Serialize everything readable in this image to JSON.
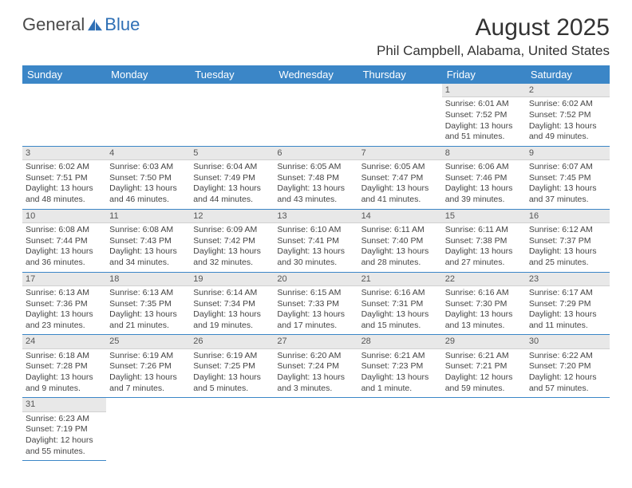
{
  "logo": {
    "text1": "General",
    "text2": "Blue",
    "icon_color": "#2e6fb5"
  },
  "title": "August 2025",
  "location": "Phil Campbell, Alabama, United States",
  "colors": {
    "header_bg": "#3b86c7",
    "header_text": "#ffffff",
    "daybar_bg": "#e8e8e8",
    "row_border": "#3b86c7"
  },
  "dayHeaders": [
    "Sunday",
    "Monday",
    "Tuesday",
    "Wednesday",
    "Thursday",
    "Friday",
    "Saturday"
  ],
  "weeks": [
    [
      null,
      null,
      null,
      null,
      null,
      {
        "n": "1",
        "sr": "Sunrise: 6:01 AM",
        "ss": "Sunset: 7:52 PM",
        "dl1": "Daylight: 13 hours",
        "dl2": "and 51 minutes."
      },
      {
        "n": "2",
        "sr": "Sunrise: 6:02 AM",
        "ss": "Sunset: 7:52 PM",
        "dl1": "Daylight: 13 hours",
        "dl2": "and 49 minutes."
      }
    ],
    [
      {
        "n": "3",
        "sr": "Sunrise: 6:02 AM",
        "ss": "Sunset: 7:51 PM",
        "dl1": "Daylight: 13 hours",
        "dl2": "and 48 minutes."
      },
      {
        "n": "4",
        "sr": "Sunrise: 6:03 AM",
        "ss": "Sunset: 7:50 PM",
        "dl1": "Daylight: 13 hours",
        "dl2": "and 46 minutes."
      },
      {
        "n": "5",
        "sr": "Sunrise: 6:04 AM",
        "ss": "Sunset: 7:49 PM",
        "dl1": "Daylight: 13 hours",
        "dl2": "and 44 minutes."
      },
      {
        "n": "6",
        "sr": "Sunrise: 6:05 AM",
        "ss": "Sunset: 7:48 PM",
        "dl1": "Daylight: 13 hours",
        "dl2": "and 43 minutes."
      },
      {
        "n": "7",
        "sr": "Sunrise: 6:05 AM",
        "ss": "Sunset: 7:47 PM",
        "dl1": "Daylight: 13 hours",
        "dl2": "and 41 minutes."
      },
      {
        "n": "8",
        "sr": "Sunrise: 6:06 AM",
        "ss": "Sunset: 7:46 PM",
        "dl1": "Daylight: 13 hours",
        "dl2": "and 39 minutes."
      },
      {
        "n": "9",
        "sr": "Sunrise: 6:07 AM",
        "ss": "Sunset: 7:45 PM",
        "dl1": "Daylight: 13 hours",
        "dl2": "and 37 minutes."
      }
    ],
    [
      {
        "n": "10",
        "sr": "Sunrise: 6:08 AM",
        "ss": "Sunset: 7:44 PM",
        "dl1": "Daylight: 13 hours",
        "dl2": "and 36 minutes."
      },
      {
        "n": "11",
        "sr": "Sunrise: 6:08 AM",
        "ss": "Sunset: 7:43 PM",
        "dl1": "Daylight: 13 hours",
        "dl2": "and 34 minutes."
      },
      {
        "n": "12",
        "sr": "Sunrise: 6:09 AM",
        "ss": "Sunset: 7:42 PM",
        "dl1": "Daylight: 13 hours",
        "dl2": "and 32 minutes."
      },
      {
        "n": "13",
        "sr": "Sunrise: 6:10 AM",
        "ss": "Sunset: 7:41 PM",
        "dl1": "Daylight: 13 hours",
        "dl2": "and 30 minutes."
      },
      {
        "n": "14",
        "sr": "Sunrise: 6:11 AM",
        "ss": "Sunset: 7:40 PM",
        "dl1": "Daylight: 13 hours",
        "dl2": "and 28 minutes."
      },
      {
        "n": "15",
        "sr": "Sunrise: 6:11 AM",
        "ss": "Sunset: 7:38 PM",
        "dl1": "Daylight: 13 hours",
        "dl2": "and 27 minutes."
      },
      {
        "n": "16",
        "sr": "Sunrise: 6:12 AM",
        "ss": "Sunset: 7:37 PM",
        "dl1": "Daylight: 13 hours",
        "dl2": "and 25 minutes."
      }
    ],
    [
      {
        "n": "17",
        "sr": "Sunrise: 6:13 AM",
        "ss": "Sunset: 7:36 PM",
        "dl1": "Daylight: 13 hours",
        "dl2": "and 23 minutes."
      },
      {
        "n": "18",
        "sr": "Sunrise: 6:13 AM",
        "ss": "Sunset: 7:35 PM",
        "dl1": "Daylight: 13 hours",
        "dl2": "and 21 minutes."
      },
      {
        "n": "19",
        "sr": "Sunrise: 6:14 AM",
        "ss": "Sunset: 7:34 PM",
        "dl1": "Daylight: 13 hours",
        "dl2": "and 19 minutes."
      },
      {
        "n": "20",
        "sr": "Sunrise: 6:15 AM",
        "ss": "Sunset: 7:33 PM",
        "dl1": "Daylight: 13 hours",
        "dl2": "and 17 minutes."
      },
      {
        "n": "21",
        "sr": "Sunrise: 6:16 AM",
        "ss": "Sunset: 7:31 PM",
        "dl1": "Daylight: 13 hours",
        "dl2": "and 15 minutes."
      },
      {
        "n": "22",
        "sr": "Sunrise: 6:16 AM",
        "ss": "Sunset: 7:30 PM",
        "dl1": "Daylight: 13 hours",
        "dl2": "and 13 minutes."
      },
      {
        "n": "23",
        "sr": "Sunrise: 6:17 AM",
        "ss": "Sunset: 7:29 PM",
        "dl1": "Daylight: 13 hours",
        "dl2": "and 11 minutes."
      }
    ],
    [
      {
        "n": "24",
        "sr": "Sunrise: 6:18 AM",
        "ss": "Sunset: 7:28 PM",
        "dl1": "Daylight: 13 hours",
        "dl2": "and 9 minutes."
      },
      {
        "n": "25",
        "sr": "Sunrise: 6:19 AM",
        "ss": "Sunset: 7:26 PM",
        "dl1": "Daylight: 13 hours",
        "dl2": "and 7 minutes."
      },
      {
        "n": "26",
        "sr": "Sunrise: 6:19 AM",
        "ss": "Sunset: 7:25 PM",
        "dl1": "Daylight: 13 hours",
        "dl2": "and 5 minutes."
      },
      {
        "n": "27",
        "sr": "Sunrise: 6:20 AM",
        "ss": "Sunset: 7:24 PM",
        "dl1": "Daylight: 13 hours",
        "dl2": "and 3 minutes."
      },
      {
        "n": "28",
        "sr": "Sunrise: 6:21 AM",
        "ss": "Sunset: 7:23 PM",
        "dl1": "Daylight: 13 hours",
        "dl2": "and 1 minute."
      },
      {
        "n": "29",
        "sr": "Sunrise: 6:21 AM",
        "ss": "Sunset: 7:21 PM",
        "dl1": "Daylight: 12 hours",
        "dl2": "and 59 minutes."
      },
      {
        "n": "30",
        "sr": "Sunrise: 6:22 AM",
        "ss": "Sunset: 7:20 PM",
        "dl1": "Daylight: 12 hours",
        "dl2": "and 57 minutes."
      }
    ],
    [
      {
        "n": "31",
        "sr": "Sunrise: 6:23 AM",
        "ss": "Sunset: 7:19 PM",
        "dl1": "Daylight: 12 hours",
        "dl2": "and 55 minutes."
      },
      null,
      null,
      null,
      null,
      null,
      null
    ]
  ]
}
